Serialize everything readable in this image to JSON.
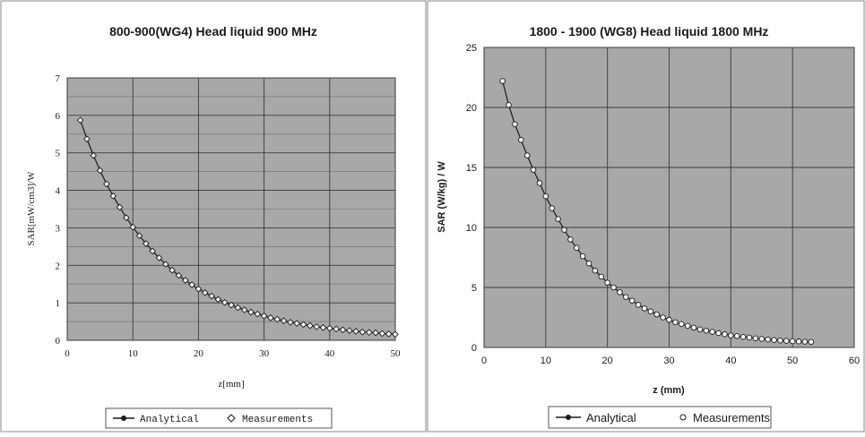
{
  "chart_data": [
    {
      "type": "line",
      "title": "800-900(WG4) Head liquid 900 MHz",
      "xlabel": "z[mm]",
      "ylabel": "SAR[mW/cm3]/W",
      "xlim": [
        0,
        50
      ],
      "ylim": [
        0,
        7
      ],
      "xticks": [
        "0",
        "10",
        "20",
        "30",
        "40",
        "50"
      ],
      "yticks": [
        "0",
        "1",
        "2",
        "3",
        "4",
        "5",
        "6",
        "7"
      ],
      "grid": true,
      "legend": "bottom",
      "legend_entries": [
        "Analytical",
        "Measurements"
      ],
      "series": [
        {
          "name": "Analytical",
          "x": [
            2,
            3,
            4,
            5,
            6,
            7,
            8,
            9,
            10,
            11,
            12,
            13,
            14,
            15,
            16,
            17,
            18,
            19,
            20,
            21,
            22,
            23,
            24,
            25,
            26,
            27,
            28,
            29,
            30,
            31,
            32,
            33,
            34,
            35,
            36,
            37,
            38,
            39,
            40,
            41,
            42,
            43,
            44,
            45,
            46,
            47,
            48,
            49,
            50
          ],
          "y": [
            5.87,
            5.37,
            4.93,
            4.53,
            4.17,
            3.85,
            3.55,
            3.27,
            3.02,
            2.79,
            2.58,
            2.38,
            2.2,
            2.03,
            1.87,
            1.73,
            1.6,
            1.48,
            1.37,
            1.27,
            1.18,
            1.09,
            1.01,
            0.94,
            0.87,
            0.81,
            0.75,
            0.7,
            0.65,
            0.6,
            0.56,
            0.52,
            0.48,
            0.45,
            0.42,
            0.39,
            0.36,
            0.34,
            0.32,
            0.3,
            0.28,
            0.26,
            0.24,
            0.22,
            0.21,
            0.2,
            0.18,
            0.17,
            0.16
          ]
        },
        {
          "name": "Measurements",
          "x": [
            2,
            3,
            4,
            5,
            6,
            7,
            8,
            9,
            10,
            11,
            12,
            13,
            14,
            15,
            16,
            17,
            18,
            19,
            20,
            21,
            22,
            23,
            24,
            25,
            26,
            27,
            28,
            29,
            30,
            31,
            32,
            33,
            34,
            35,
            36,
            37,
            38,
            39,
            40,
            41,
            42,
            43,
            44,
            45,
            46,
            47,
            48,
            49,
            50
          ],
          "y": [
            5.87,
            5.37,
            4.93,
            4.53,
            4.17,
            3.85,
            3.55,
            3.27,
            3.02,
            2.79,
            2.58,
            2.38,
            2.2,
            2.03,
            1.87,
            1.73,
            1.6,
            1.48,
            1.37,
            1.27,
            1.18,
            1.09,
            1.01,
            0.94,
            0.87,
            0.81,
            0.75,
            0.7,
            0.65,
            0.6,
            0.56,
            0.52,
            0.48,
            0.45,
            0.42,
            0.39,
            0.36,
            0.34,
            0.32,
            0.3,
            0.28,
            0.26,
            0.24,
            0.22,
            0.21,
            0.2,
            0.18,
            0.17,
            0.16
          ]
        }
      ]
    },
    {
      "type": "line",
      "title": "1800 - 1900 (WG8) Head liquid 1800 MHz",
      "xlabel": "z (mm)",
      "ylabel": "SAR (W/kg) / W",
      "xlim": [
        0,
        60
      ],
      "ylim": [
        0,
        25
      ],
      "xticks": [
        "0",
        "10",
        "20",
        "30",
        "40",
        "50",
        "60"
      ],
      "yticks": [
        "0",
        "5",
        "10",
        "15",
        "20",
        "25"
      ],
      "grid": true,
      "legend": "bottom",
      "legend_entries": [
        "Analytical",
        "Measurements"
      ],
      "series": [
        {
          "name": "Analytical",
          "x": [
            3,
            4,
            5,
            6,
            7,
            8,
            9,
            10,
            11,
            12,
            13,
            14,
            15,
            16,
            17,
            18,
            19,
            20,
            21,
            22,
            23,
            24,
            25,
            26,
            27,
            28,
            29,
            30,
            31,
            32,
            33,
            34,
            35,
            36,
            37,
            38,
            39,
            40,
            41,
            42,
            43,
            44,
            45,
            46,
            47,
            48,
            49,
            50,
            51,
            52,
            53
          ],
          "y": [
            22.2,
            20.2,
            18.6,
            17.3,
            16.0,
            14.8,
            13.7,
            12.6,
            11.6,
            10.7,
            9.8,
            9.0,
            8.3,
            7.6,
            7.0,
            6.4,
            5.9,
            5.4,
            5.0,
            4.6,
            4.2,
            3.9,
            3.55,
            3.25,
            3.0,
            2.75,
            2.5,
            2.3,
            2.1,
            1.95,
            1.8,
            1.65,
            1.5,
            1.4,
            1.3,
            1.2,
            1.1,
            1.0,
            0.95,
            0.88,
            0.82,
            0.76,
            0.71,
            0.66,
            0.62,
            0.58,
            0.55,
            0.52,
            0.5,
            0.48,
            0.46
          ]
        },
        {
          "name": "Measurements",
          "x": [
            3,
            4,
            5,
            6,
            7,
            8,
            9,
            10,
            11,
            12,
            13,
            14,
            15,
            16,
            17,
            18,
            19,
            20,
            21,
            22,
            23,
            24,
            25,
            26,
            27,
            28,
            29,
            30,
            31,
            32,
            33,
            34,
            35,
            36,
            37,
            38,
            39,
            40,
            41,
            42,
            43,
            44,
            45,
            46,
            47,
            48,
            49,
            50,
            51,
            52,
            53
          ],
          "y": [
            22.2,
            20.2,
            18.6,
            17.3,
            16.0,
            14.8,
            13.7,
            12.6,
            11.6,
            10.7,
            9.8,
            9.0,
            8.3,
            7.6,
            7.0,
            6.4,
            5.9,
            5.4,
            5.0,
            4.6,
            4.2,
            3.9,
            3.55,
            3.25,
            3.0,
            2.75,
            2.5,
            2.3,
            2.1,
            1.95,
            1.8,
            1.65,
            1.5,
            1.4,
            1.3,
            1.2,
            1.1,
            1.0,
            0.95,
            0.88,
            0.82,
            0.76,
            0.71,
            0.66,
            0.62,
            0.58,
            0.55,
            0.52,
            0.5,
            0.48,
            0.46
          ]
        }
      ]
    }
  ],
  "colors": {
    "plot_background": "#a8a8a8",
    "major_grid": "#3a3a3a",
    "minor_grid": "#6e6e6e",
    "line": "#1a1a1a",
    "marker_fill": "#ffffff"
  }
}
